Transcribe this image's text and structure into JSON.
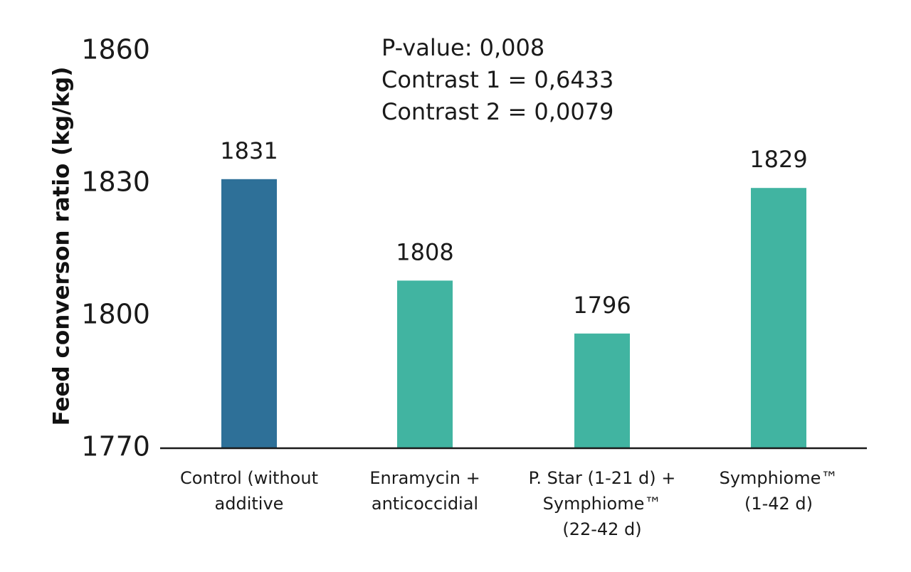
{
  "chart_data": {
    "type": "bar",
    "ylabel": "Feed converson ratio (kg/kg)",
    "xlabel": "",
    "ylim": [
      1770,
      1860
    ],
    "yticks": [
      1770,
      1800,
      1830,
      1860
    ],
    "grid": false,
    "categories": [
      [
        "Control (without",
        "additive"
      ],
      [
        "Enramycin +",
        "anticoccidial"
      ],
      [
        "P. Star (1-21 d) +",
        "Symphiome™",
        "(22-42 d)"
      ],
      [
        "Symphiome™",
        "(1-42 d)"
      ]
    ],
    "values": [
      1831,
      1808,
      1796,
      1829
    ],
    "value_labels": [
      "1831",
      "1808",
      "1796",
      "1829"
    ],
    "bar_colors": [
      "#2e7098",
      "#41b4a1",
      "#41b4a1",
      "#41b4a1"
    ],
    "annotations": [
      "P-value: 0,008",
      "Contrast 1 = 0,6433",
      "Contrast 2 = 0,0079"
    ]
  },
  "colors": {
    "axis": "#1a1a1a",
    "text": "#1a1a1a"
  }
}
